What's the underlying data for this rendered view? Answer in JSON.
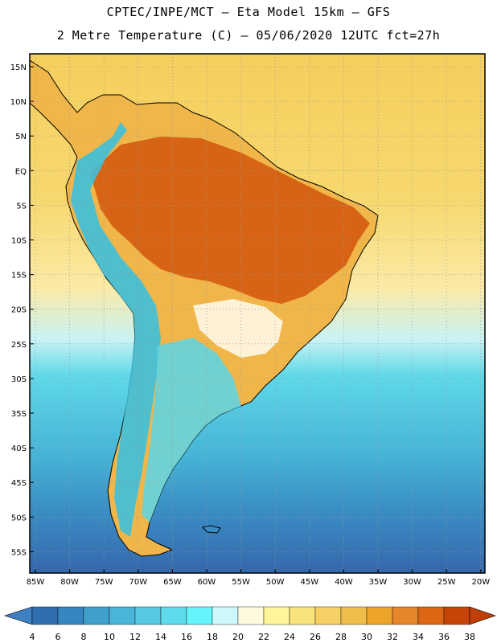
{
  "header": {
    "line1": "CPTEC/INPE/MCT –  Eta Model 15km – GFS",
    "line2": "2 Metre Temperature (C) – 05/06/2020 12UTC fct=27h"
  },
  "map": {
    "lat_labels": [
      "15N",
      "10N",
      "5N",
      "EQ",
      "5S",
      "10S",
      "15S",
      "20S",
      "25S",
      "30S",
      "35S",
      "40S",
      "45S",
      "50S",
      "55S"
    ],
    "lon_labels": [
      "85W",
      "80W",
      "75W",
      "70W",
      "65W",
      "60W",
      "55W",
      "50W",
      "45W",
      "40W",
      "35W",
      "30W",
      "25W",
      "20W"
    ],
    "land_outline_color": "#000000",
    "gridline_color": "#9a9a9a"
  },
  "colorbar": {
    "labels": [
      "4",
      "6",
      "8",
      "10",
      "12",
      "14",
      "16",
      "18",
      "20",
      "22",
      "24",
      "26",
      "28",
      "30",
      "32",
      "34",
      "36",
      "38"
    ],
    "colors": [
      "#2f6fb0",
      "#3785bf",
      "#40a0cc",
      "#49b5d8",
      "#55c8e2",
      "#5edcec",
      "#66f4fb",
      "#ccf8fc",
      "#fffadf",
      "#fff59a",
      "#f9e37c",
      "#f5d065",
      "#f0bd4a",
      "#eca528",
      "#e6862a",
      "#dc6614",
      "#c74406"
    ],
    "low_arrow_color": "#3f7fc2",
    "high_arrow_color": "#c03e08"
  }
}
